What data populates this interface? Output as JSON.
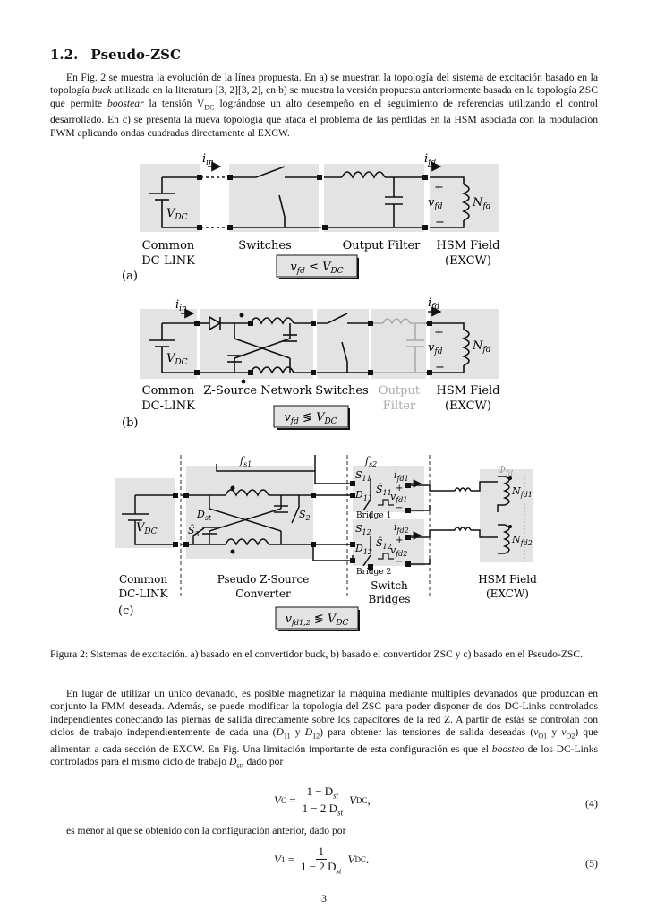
{
  "section": {
    "number": "1.2.",
    "title": "Pseudo-ZSC"
  },
  "para1": {
    "p1": "En Fig. 2 se muestra la evolución de la línea propuesta. En a) se muestran la topología del sistema de excitación basado en la topología ",
    "buck": "buck",
    "p2": " utilizada en la literatura [3, 2][3, 2], en b) se muestra la versión propuesta anteriormente basada en la topología ZSC que permite ",
    "boostear": "boostear",
    "p3": " la tensión V",
    "p3sub": "DC",
    "p4": " lográndose un alto desempeño en el seguimiento de referencias utilizando el control desarrollado. En c) se presenta la nueva topología que ataca el problema de las pérdidas en la HSM asociada con la modulación PWM aplicando ondas cuadradas directamente al EXCW."
  },
  "figure": {
    "a": {
      "panel_label": "(a)",
      "i_in": "i",
      "i_in_sub": "in",
      "i_fd": "i",
      "i_fd_sub": "fd",
      "vdc": "V",
      "vdc_sub": "DC",
      "vfd": "v",
      "vfd_sub": "fd",
      "nfd": "N",
      "nfd_sub": "fd",
      "plus": "+",
      "minus": "−",
      "labels": [
        "Common",
        "DC-LINK",
        "Switches",
        "Output Filter",
        "HSM Field",
        "(EXCW)"
      ],
      "box": "v",
      "box_sub": "fd",
      "box_rel": "≤",
      "box_rhs": "V",
      "box_rhs_sub": "DC"
    },
    "b": {
      "panel_label": "(b)",
      "labels": [
        "Common",
        "DC-LINK",
        "Z-Source Network",
        "Switches",
        "Output",
        "Filter",
        "HSM Field",
        "(EXCW)"
      ],
      "box_rel": "≶"
    },
    "c": {
      "panel_label": "(c)",
      "fs1": "f",
      "fs1_sub": "s1",
      "fs2": "f",
      "fs2_sub": "s2",
      "dst": "D",
      "dst_sub": "st",
      "s2": "S",
      "s2_sub": "2",
      "s3": "S̄",
      "s3_sub": "3",
      "s11": "S",
      "s11_sub": "11",
      "s11b": "S̄",
      "s11b_sub": "11",
      "d11": "D",
      "d11_sub": "11",
      "s12": "S",
      "s12_sub": "12",
      "s12b": "S̄",
      "s12b_sub": "12",
      "d12": "D",
      "d12_sub": "12",
      "ifd1": "i",
      "ifd1_sub": "fd1",
      "ifd2": "i",
      "ifd2_sub": "fd2",
      "vfd1": "v",
      "vfd1_sub": "fd1",
      "vfd2": "v",
      "vfd2_sub": "fd2",
      "nfd1": "N",
      "nfd1_sub": "fd1",
      "nfd2": "N",
      "nfd2_sub": "fd2",
      "phi": "Φ",
      "phi_sub": "fd",
      "bridge1": "Bridge 1",
      "bridge2": "Bridge 2",
      "labels": [
        "Common",
        "DC-LINK",
        "Pseudo Z-Source",
        "Converter",
        "Switch",
        "Bridges",
        "HSM Field",
        "(EXCW)"
      ],
      "box_sub": "fd1,2",
      "box_rel": "≶"
    }
  },
  "caption": "Figura 2: Sistemas de excitación. a) basado en el convertidor buck, b) basado el convertidor ZSC y c) basado en el Pseudo-ZSC.",
  "para2": {
    "p1": "En lugar de utilizar un único devanado, es posible magnetizar la máquina mediante múltiples devanados que produzcan en conjunto la FMM deseada. Además, se puede modificar la topología del ZSC para poder disponer de dos DC-Links controlados independientes conectando las piernas de salida directamente sobre los capacitores de la red Z. A partir de estás se controlan con ciclos de trabajo independientemente de cada una (",
    "d11": "D",
    "d11s": "11",
    "y1": " y ",
    "d12": "D",
    "d12s": "12",
    "p2": ") para obtener las tensiones de salida deseadas (",
    "vo1": "v",
    "vo1s": "O1",
    "y2": " y ",
    "vo2": "v",
    "vo2s": "O2",
    "p3": ") que alimentan a cada sección de EXCW. En Fig. Una limitación importante de esta configuración es que el ",
    "boosteo": "boosteo",
    "p4": " de los DC-Links controlados para el mismo ciclo de trabajo ",
    "dst": "D",
    "dsts": "st",
    "p5": ", dado por"
  },
  "eq4": {
    "lhs": "V",
    "lhs_sub": "C",
    "num": "1 − D",
    "num_sub": "st",
    "den": "1 − 2 D",
    "den_sub": "st",
    "rhs": "V",
    "rhs_sub": "DC",
    "tail": ",",
    "label": "(4)"
  },
  "mid_text": "es menor al que se obtenido con la configuración anterior, dado por",
  "eq5": {
    "lhs": "V",
    "lhs_sub": "1",
    "num": "1",
    "den": "1 − 2 D",
    "den_sub": "st",
    "rhs": "V",
    "rhs_sub": "DC",
    "tail": ".",
    "label": "(5)"
  },
  "page_number": "3"
}
